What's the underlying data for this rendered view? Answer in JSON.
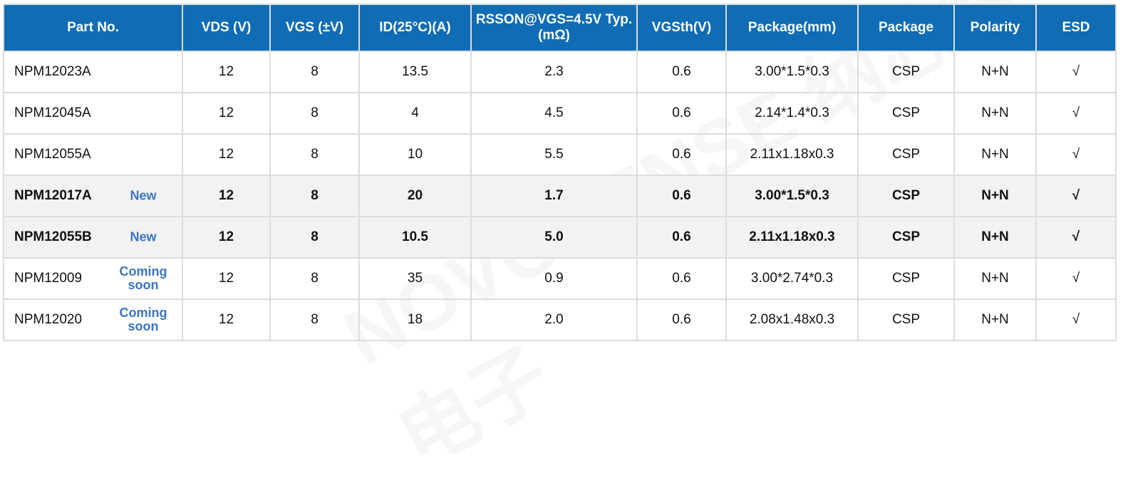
{
  "headers": [
    "Part No.",
    "VDS (V)",
    "VGS (±V)",
    "ID(25°C)(A)",
    "RSSON@VGS=4.5V Typ.(mΩ)",
    "VGSth(V)",
    "Package(mm)",
    "Package",
    "Polarity",
    "ESD"
  ],
  "rows": [
    {
      "part": "NPM12023A",
      "badge": "",
      "vds": "12",
      "vgs": "8",
      "id": "13.5",
      "rds": "2.3",
      "vth": "0.6",
      "dim": "3.00*1.5*0.3",
      "pkg": "CSP",
      "pol": "N+N",
      "esd": "√"
    },
    {
      "part": "NPM12045A",
      "badge": "",
      "vds": "12",
      "vgs": "8",
      "id": "4",
      "rds": "4.5",
      "vth": "0.6",
      "dim": "2.14*1.4*0.3",
      "pkg": "CSP",
      "pol": "N+N",
      "esd": "√"
    },
    {
      "part": "NPM12055A",
      "badge": "",
      "vds": "12",
      "vgs": "8",
      "id": "10",
      "rds": "5.5",
      "vth": "0.6",
      "dim": "2.11x1.18x0.3",
      "pkg": "CSP",
      "pol": "N+N",
      "esd": "√"
    },
    {
      "part": "NPM12017A",
      "badge": "New",
      "vds": "12",
      "vgs": "8",
      "id": "20",
      "rds": "1.7",
      "vth": "0.6",
      "dim": "3.00*1.5*0.3",
      "pkg": "CSP",
      "pol": "N+N",
      "esd": "√"
    },
    {
      "part": "NPM12055B",
      "badge": "New",
      "vds": "12",
      "vgs": "8",
      "id": "10.5",
      "rds": "5.0",
      "vth": "0.6",
      "dim": "2.11x1.18x0.3",
      "pkg": "CSP",
      "pol": "N+N",
      "esd": "√"
    },
    {
      "part": "NPM12009",
      "badge": "Coming soon",
      "vds": "12",
      "vgs": "8",
      "id": "35",
      "rds": "0.9",
      "vth": "0.6",
      "dim": "3.00*2.74*0.3",
      "pkg": "CSP",
      "pol": "N+N",
      "esd": "√"
    },
    {
      "part": "NPM12020",
      "badge": "Coming soon",
      "vds": "12",
      "vgs": "8",
      "id": "18",
      "rds": "2.0",
      "vth": "0.6",
      "dim": "2.08x1.48x0.3",
      "pkg": "CSP",
      "pol": "N+N",
      "esd": "√"
    }
  ],
  "watermark": "NOVOSENSE 纳芯微电子",
  "colors": {
    "header": "#0f6cb5",
    "badge": "#3a74c4",
    "highlight_row": "#f2f2f2"
  }
}
